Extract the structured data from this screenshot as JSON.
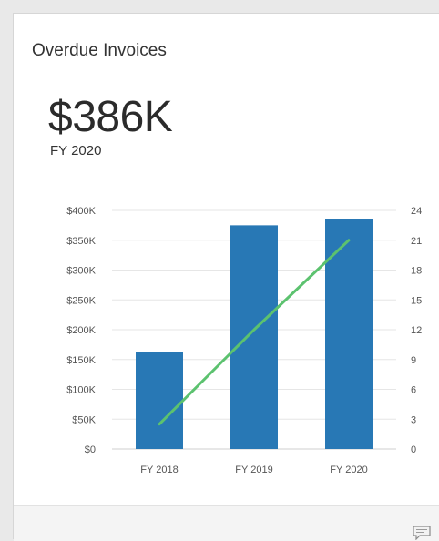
{
  "card": {
    "title": "Overdue Invoices",
    "kpi_value": "$386K",
    "kpi_caption": "FY 2020"
  },
  "colors": {
    "bar": "#2878b5",
    "line": "#5cc26f",
    "grid": "#e6e6e6"
  },
  "footer": {
    "icon": "comment-icon"
  },
  "chart_data": {
    "type": "bar",
    "categories": [
      "FY 2018",
      "FY 2019",
      "FY 2020"
    ],
    "series": [
      {
        "type": "bar",
        "axis": "left",
        "values": [
          162000,
          375000,
          386000
        ]
      },
      {
        "type": "line",
        "axis": "right",
        "values": [
          2.5,
          12,
          21
        ]
      }
    ],
    "ylim_left": [
      0,
      400000
    ],
    "yticks_left": [
      "$0",
      "$50K",
      "$100K",
      "$150K",
      "$200K",
      "$250K",
      "$300K",
      "$350K",
      "$400K"
    ],
    "ylim_right": [
      0,
      24
    ],
    "yticks_right": [
      "0",
      "3",
      "6",
      "9",
      "12",
      "15",
      "18",
      "21",
      "24"
    ],
    "grid": true,
    "legend": "none"
  }
}
